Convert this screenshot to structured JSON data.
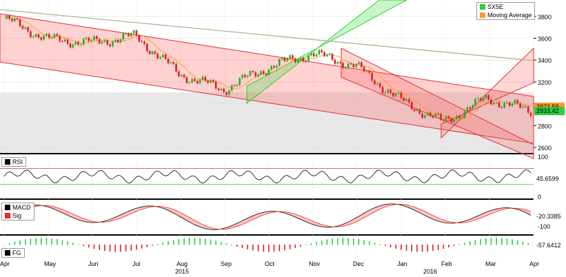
{
  "chart_data": [
    {
      "type": "candlestick",
      "symbol": "SX5E",
      "legend": [
        "SX5E",
        "Moving Average"
      ],
      "last_price": "2933.42",
      "moving_average_last": "2973.59",
      "ylim": [
        2550,
        3950
      ],
      "yticks": [
        2600,
        2800,
        3000,
        3200,
        3400,
        3600,
        3800
      ],
      "ytick_labels": [
        "2600",
        "2800",
        "",
        "3200",
        "3400",
        "3600",
        "3800"
      ],
      "x_labels": [
        "Apr",
        "May",
        "Jun",
        "Jul",
        "Aug",
        "Sep",
        "Oct",
        "Nov",
        "Dec",
        "Jan",
        "Feb",
        "Mar",
        "Apr"
      ],
      "year_labels": [
        "2015",
        "2016"
      ],
      "close_approx": [
        {
          "month": "Apr",
          "value": 3780
        },
        {
          "month": "May",
          "value": 3590
        },
        {
          "month": "Jun",
          "value": 3560
        },
        {
          "month": "Jul",
          "value": 3620
        },
        {
          "month": "Aug",
          "value": 3270
        },
        {
          "month": "Sep",
          "value": 3130
        },
        {
          "month": "Oct",
          "value": 3330
        },
        {
          "month": "Nov",
          "value": 3460
        },
        {
          "month": "Dec",
          "value": 3350
        },
        {
          "month": "Jan",
          "value": 3040
        },
        {
          "month": "Feb",
          "value": 2830
        },
        {
          "month": "Mar",
          "value": 3050
        },
        {
          "month": "Apr",
          "value": 2933
        }
      ],
      "grid": true
    },
    {
      "type": "line",
      "indicator": "RSI",
      "legend": [
        "RSI"
      ],
      "last_value": "45.6599",
      "ylim": [
        0,
        100
      ],
      "yticks": [
        0,
        100
      ],
      "ytick_labels": [
        "0",
        "100"
      ],
      "reference_lines": [
        70,
        30
      ]
    },
    {
      "type": "line",
      "indicator": "MACD",
      "legend": [
        "MACD",
        "Sig"
      ],
      "last_value": "-20.3385",
      "yticks": [
        -100
      ],
      "ytick_labels": [
        "-100"
      ]
    },
    {
      "type": "bar",
      "indicator": "FG",
      "legend": [
        "FG"
      ],
      "last_value": "-57.6412"
    }
  ]
}
